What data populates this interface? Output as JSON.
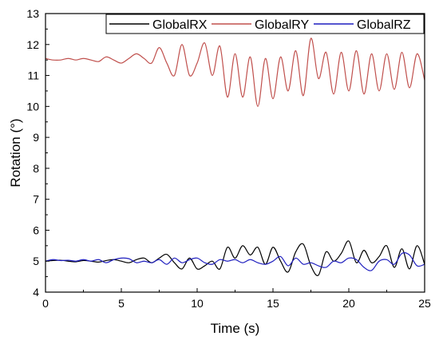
{
  "chart_data": {
    "type": "line",
    "title": "",
    "xlabel": "Time (s)",
    "ylabel": "Rotation (°)",
    "xlim": [
      0,
      25
    ],
    "ylim": [
      4,
      13
    ],
    "xticks": [
      "0",
      "5",
      "10",
      "15",
      "20",
      "25"
    ],
    "yticks": [
      "4",
      "5",
      "6",
      "7",
      "8",
      "9",
      "10",
      "11",
      "12",
      "13"
    ],
    "grid": false,
    "legend_position": "top-right",
    "series": [
      {
        "name": "GlobalRX",
        "color": "#000000",
        "x": [
          0,
          0.5,
          1,
          1.5,
          2,
          2.5,
          3,
          3.5,
          4,
          4.5,
          5,
          5.5,
          6,
          6.5,
          7,
          7.5,
          8,
          8.5,
          9,
          9.5,
          10,
          10.5,
          11,
          11.5,
          12,
          12.5,
          13,
          13.5,
          14,
          14.5,
          15,
          15.5,
          16,
          16.5,
          17,
          17.5,
          18,
          18.5,
          19,
          19.5,
          20,
          20.5,
          21,
          21.5,
          22,
          22.5,
          23,
          23.5,
          24,
          24.5,
          25
        ],
        "y": [
          5.0,
          5.02,
          5.03,
          5.0,
          4.98,
          5.02,
          5.0,
          4.97,
          5.02,
          5.05,
          5.0,
          4.95,
          5.05,
          5.1,
          4.95,
          5.1,
          5.22,
          4.95,
          4.75,
          5.1,
          4.75,
          4.85,
          5.0,
          4.75,
          5.45,
          5.1,
          5.5,
          5.2,
          5.45,
          4.9,
          5.45,
          5.0,
          4.65,
          5.3,
          5.55,
          4.85,
          4.55,
          5.3,
          5.0,
          5.25,
          5.65,
          4.95,
          5.35,
          4.95,
          5.15,
          5.5,
          4.8,
          5.4,
          4.75,
          5.5,
          4.9
        ]
      },
      {
        "name": "GlobalRY",
        "color": "#c0504d",
        "x": [
          0,
          0.5,
          1,
          1.5,
          2,
          2.5,
          3,
          3.5,
          4,
          4.5,
          5,
          5.5,
          6,
          6.5,
          7,
          7.5,
          8,
          8.5,
          9,
          9.5,
          10,
          10.5,
          11,
          11.5,
          12,
          12.5,
          13,
          13.5,
          14,
          14.5,
          15,
          15.5,
          16,
          16.5,
          17,
          17.5,
          18,
          18.5,
          19,
          19.5,
          20,
          20.5,
          21,
          21.5,
          22,
          22.5,
          23,
          23.5,
          24,
          24.5,
          25
        ],
        "y": [
          11.55,
          11.5,
          11.5,
          11.55,
          11.5,
          11.55,
          11.5,
          11.45,
          11.6,
          11.5,
          11.4,
          11.55,
          11.7,
          11.55,
          11.4,
          11.9,
          11.4,
          11.0,
          12.0,
          11.0,
          11.4,
          12.05,
          11.0,
          11.95,
          10.3,
          11.7,
          10.3,
          11.6,
          10.0,
          11.55,
          10.25,
          11.6,
          10.5,
          11.8,
          10.35,
          12.2,
          10.9,
          11.75,
          10.4,
          11.75,
          10.5,
          11.8,
          10.4,
          11.7,
          10.5,
          11.7,
          10.55,
          11.75,
          10.6,
          11.7,
          10.85
        ]
      },
      {
        "name": "GlobalRZ",
        "color": "#1f1fbf",
        "x": [
          0,
          0.5,
          1,
          1.5,
          2,
          2.5,
          3,
          3.5,
          4,
          4.5,
          5,
          5.5,
          6,
          6.5,
          7,
          7.5,
          8,
          8.5,
          9,
          9.5,
          10,
          10.5,
          11,
          11.5,
          12,
          12.5,
          13,
          13.5,
          14,
          14.5,
          15,
          15.5,
          16,
          16.5,
          17,
          17.5,
          18,
          18.5,
          19,
          19.5,
          20,
          20.5,
          21,
          21.5,
          22,
          22.5,
          23,
          23.5,
          24,
          24.5,
          25
        ],
        "y": [
          5.0,
          5.05,
          5.02,
          5.03,
          5.0,
          5.05,
          5.0,
          5.05,
          4.95,
          5.05,
          5.1,
          5.08,
          4.95,
          5.0,
          4.95,
          5.05,
          4.9,
          5.1,
          4.95,
          5.05,
          5.1,
          4.95,
          4.9,
          5.05,
          5.0,
          5.05,
          4.95,
          5.05,
          4.95,
          4.9,
          5.0,
          5.15,
          4.85,
          5.1,
          4.9,
          4.95,
          4.85,
          4.8,
          5.0,
          4.95,
          5.1,
          5.05,
          4.8,
          4.7,
          5.0,
          5.05,
          4.9,
          5.25,
          5.2,
          4.85,
          4.9
        ]
      }
    ]
  }
}
